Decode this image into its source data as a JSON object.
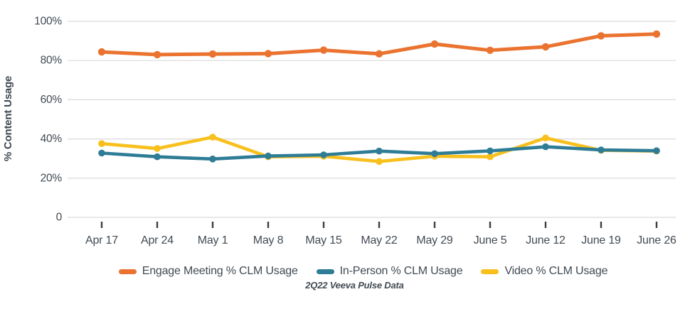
{
  "colors": {
    "text": "#414a53",
    "grid": "#d9d9d9",
    "tick": "#3f3f3f",
    "engage_orange": "#eb7330",
    "inperson_teal": "#2e7c96",
    "video_yellow": "#f8c01d",
    "background": "#ffffff"
  },
  "chart_data": {
    "type": "line",
    "title": "",
    "xlabel": "",
    "ylabel": "% Content Usage",
    "caption": "2Q22 Veeva Pulse Data",
    "ylim": [
      0,
      100
    ],
    "grid": "horizontal",
    "legend_position": "bottom",
    "yticks": {
      "labels": [
        "100%",
        "80%",
        "60%",
        "40%",
        "20%",
        "0"
      ],
      "values": [
        100,
        80,
        60,
        40,
        20,
        0
      ]
    },
    "categories": [
      "Apr 17",
      "Apr 24",
      "May 1",
      "May 8",
      "May 15",
      "May 22",
      "May 29",
      "June 5",
      "June 12",
      "June 19",
      "June 26"
    ],
    "series": [
      {
        "name": "Engage Meeting % CLM Usage",
        "color": "#eb7330",
        "values": [
          84.4,
          83.0,
          83.3,
          83.5,
          85.3,
          83.4,
          88.4,
          85.2,
          87.0,
          92.6,
          93.5
        ]
      },
      {
        "name": "In-Person % CLM Usage",
        "color": "#2e7c96",
        "values": [
          32.8,
          30.9,
          29.8,
          31.3,
          31.9,
          33.8,
          32.5,
          33.9,
          36.0,
          34.4,
          34.0
        ]
      },
      {
        "name": "Video % CLM Usage",
        "color": "#f8c01d",
        "values": [
          37.6,
          35.1,
          40.9,
          30.9,
          31.2,
          28.5,
          31.2,
          30.9,
          40.5,
          34.2,
          33.8
        ]
      }
    ]
  }
}
